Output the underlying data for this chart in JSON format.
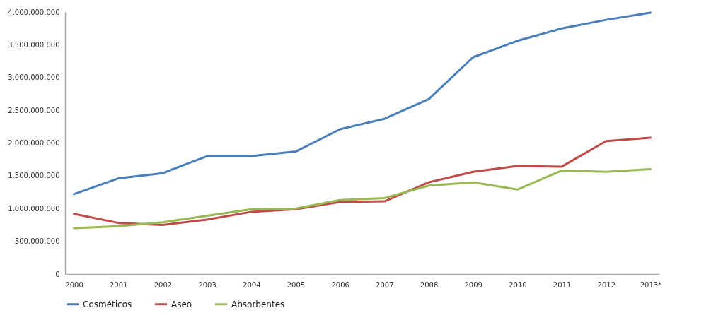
{
  "chart_data": {
    "type": "line",
    "categories": [
      "2000",
      "2001",
      "2002",
      "2003",
      "2004",
      "2005",
      "2006",
      "2007",
      "2008",
      "2009",
      "2010",
      "2011",
      "2012",
      "2013*"
    ],
    "series": [
      {
        "name": "Cosméticos",
        "color": "#4a7ebb",
        "values": [
          1220000000,
          1460000000,
          1540000000,
          1800000000,
          1800000000,
          1870000000,
          2210000000,
          2370000000,
          2670000000,
          3310000000,
          3560000000,
          3750000000,
          3880000000,
          3990000000
        ]
      },
      {
        "name": "Aseo",
        "color": "#be4b48",
        "values": [
          920000000,
          780000000,
          750000000,
          830000000,
          950000000,
          990000000,
          1100000000,
          1110000000,
          1400000000,
          1560000000,
          1650000000,
          1640000000,
          2030000000,
          2080000000
        ]
      },
      {
        "name": "Absorbentes",
        "color": "#98b954",
        "values": [
          700000000,
          730000000,
          790000000,
          890000000,
          990000000,
          1000000000,
          1130000000,
          1160000000,
          1350000000,
          1400000000,
          1290000000,
          1580000000,
          1560000000,
          1600000000
        ]
      }
    ],
    "ylim": [
      0,
      4000000000
    ],
    "yticks": [
      {
        "value": 0,
        "label": "0"
      },
      {
        "value": 500000000,
        "label": "500.000.000"
      },
      {
        "value": 1000000000,
        "label": "1.000.000.000"
      },
      {
        "value": 1500000000,
        "label": "1.500.000.000"
      },
      {
        "value": 2000000000,
        "label": "2.000.000.000"
      },
      {
        "value": 2500000000,
        "label": "2.500.000.000"
      },
      {
        "value": 3000000000,
        "label": "3.000.000.000"
      },
      {
        "value": 3500000000,
        "label": "3.500.000.000"
      },
      {
        "value": 4000000000,
        "label": "4.000.000.000"
      }
    ],
    "grid": false,
    "legend": "bottom",
    "marker": "none",
    "line_style": "solid"
  }
}
